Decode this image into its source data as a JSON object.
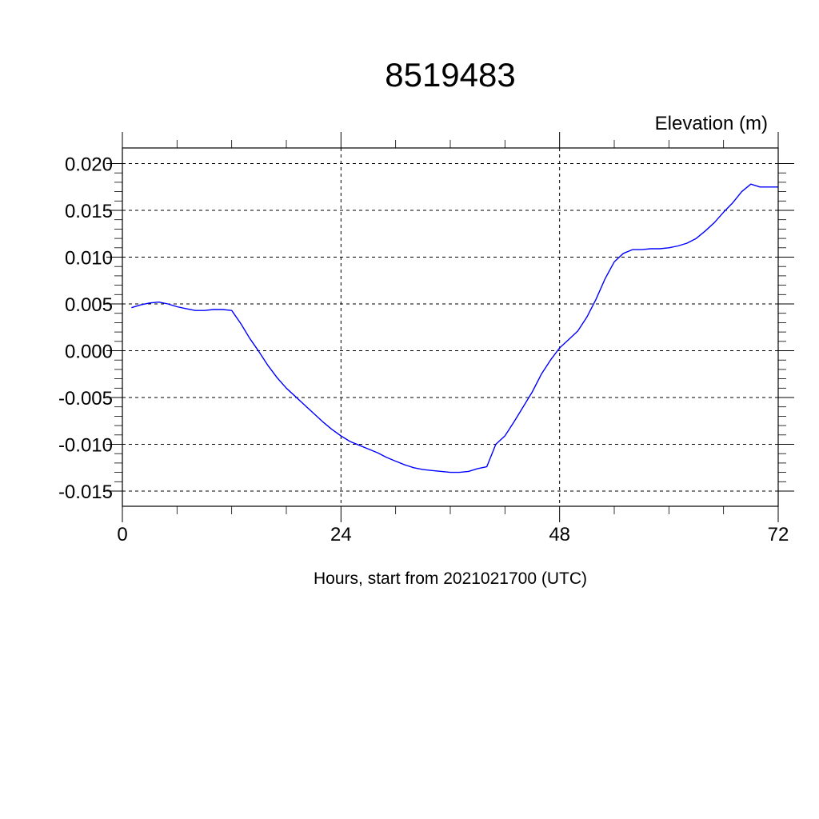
{
  "chart_data": {
    "type": "line",
    "title": "8519483",
    "unit_label": "Elevation (m)",
    "xlabel": "Hours, start from 2021021700 (UTC)",
    "ylabel": "",
    "xlim": [
      0,
      72
    ],
    "ylim": [
      -0.015,
      0.02
    ],
    "x_ticks": [
      0,
      24,
      48,
      72
    ],
    "x_tick_labels": [
      "0",
      "24",
      "48",
      "72"
    ],
    "y_ticks": [
      0.02,
      0.015,
      0.01,
      0.005,
      0.0,
      -0.005,
      -0.01,
      -0.015
    ],
    "y_tick_labels": [
      "0.020",
      "0.015",
      "0.010",
      "0.005",
      "0.000",
      "-0.005",
      "-0.010",
      "-0.015"
    ],
    "grid": true,
    "series_color": "#0000ff",
    "series": [
      {
        "x": [
          1,
          2,
          3,
          4,
          5,
          6,
          7,
          8,
          9,
          10,
          11,
          12,
          13,
          14,
          15,
          16,
          17,
          18,
          19,
          20,
          21,
          22,
          23,
          24,
          25,
          26,
          27,
          28,
          29,
          30,
          31,
          32,
          33,
          34,
          35,
          36,
          37,
          38,
          39,
          40,
          41,
          42,
          43,
          44,
          45,
          46,
          47,
          48,
          49,
          50,
          51,
          52,
          53,
          54,
          55,
          56,
          57,
          58,
          59,
          60,
          61,
          62,
          63,
          64,
          65,
          66,
          67,
          68,
          69,
          70,
          71,
          72
        ],
        "values": [
          0.0046,
          0.0049,
          0.0051,
          0.0052,
          0.005,
          0.0047,
          0.0045,
          0.0043,
          0.0043,
          0.0044,
          0.0044,
          0.0043,
          0.0029,
          0.0013,
          -0.0001,
          -0.0016,
          -0.0029,
          -0.004,
          -0.0049,
          -0.0058,
          -0.0067,
          -0.0076,
          -0.0084,
          -0.0091,
          -0.0097,
          -0.0101,
          -0.0105,
          -0.0109,
          -0.0114,
          -0.0118,
          -0.0122,
          -0.0125,
          -0.0127,
          -0.0128,
          -0.0129,
          -0.013,
          -0.013,
          -0.0129,
          -0.0126,
          -0.0124,
          -0.01,
          -0.0091,
          -0.0076,
          -0.006,
          -0.0044,
          -0.0025,
          -0.001,
          0.0003,
          0.0012,
          0.0021,
          0.0036,
          0.0055,
          0.0077,
          0.0095,
          0.0104,
          0.0108,
          0.0108,
          0.0109,
          0.0109,
          0.011,
          0.0112,
          0.0115,
          0.012,
          0.0128,
          0.0137,
          0.0148,
          0.0158,
          0.017,
          0.0178,
          0.0175,
          0.0175,
          0.0175
        ]
      }
    ]
  }
}
